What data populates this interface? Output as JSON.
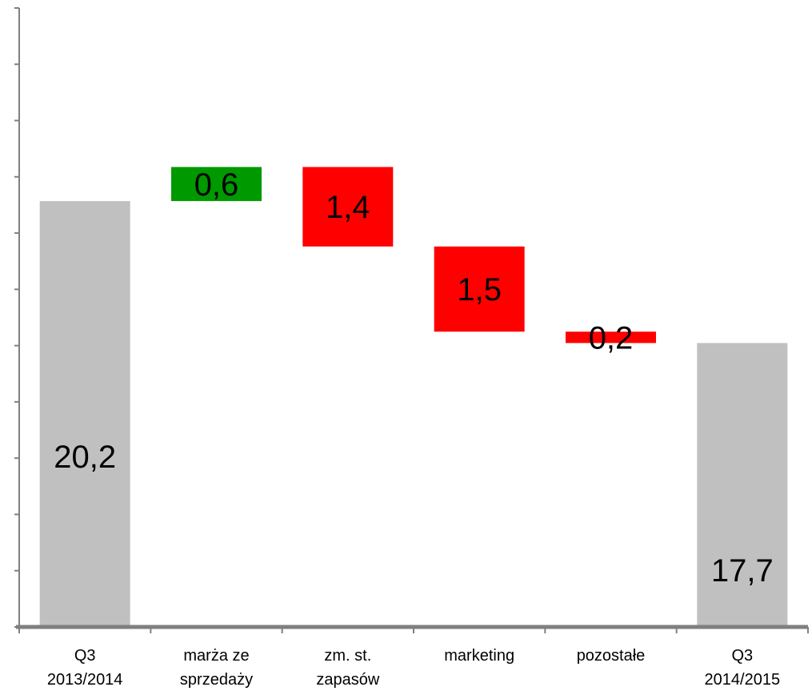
{
  "chart_data": {
    "type": "bar",
    "subtype": "waterfall",
    "title": "",
    "xlabel": "",
    "ylabel": "",
    "ylim": [
      12.7,
      23.6
    ],
    "y_tick_labels_visible": false,
    "grid": false,
    "legend": "none",
    "categories": [
      [
        "Q3",
        "2013/2014"
      ],
      [
        "marża ze",
        "sprzedaży"
      ],
      [
        "zm. st.",
        "zapasów"
      ],
      [
        "marketing"
      ],
      [
        "pozostałe"
      ],
      [
        "Q3",
        "2014/2015"
      ]
    ],
    "steps": [
      {
        "kind": "total",
        "value": 20.2,
        "label": "20,2"
      },
      {
        "kind": "increase",
        "value": 0.6,
        "label": "0,6"
      },
      {
        "kind": "decrease",
        "value": 1.4,
        "label": "1,4"
      },
      {
        "kind": "decrease",
        "value": 1.5,
        "label": "1,5"
      },
      {
        "kind": "decrease",
        "value": 0.2,
        "label": "0,2"
      },
      {
        "kind": "total",
        "value": 17.7,
        "label": "17,7"
      }
    ],
    "colors": {
      "total": "#c0c0c0",
      "increase": "#009900",
      "decrease": "#ff0000",
      "axis": "#808080"
    }
  }
}
